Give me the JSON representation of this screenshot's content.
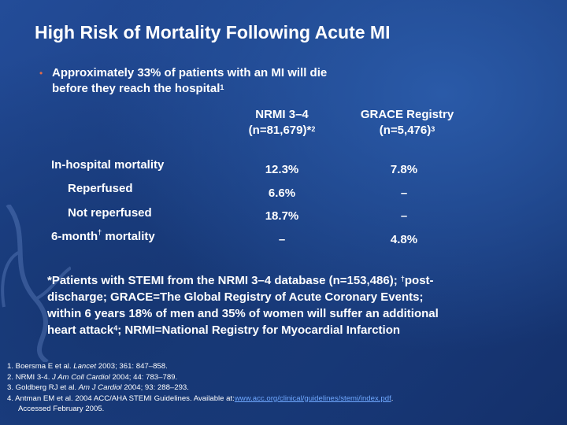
{
  "slide": {
    "title": "High Risk of Mortality Following Acute MI",
    "bullet": {
      "dot": "•",
      "line1": "Approximately 33% of patients with an MI will die",
      "line2": "before they reach the hospital",
      "sup": "1"
    }
  },
  "table": {
    "col1": {
      "line1": "NRMI 3–4",
      "line2": "(n=81,679)*",
      "sup": "2"
    },
    "col2": {
      "line1": "GRACE Registry",
      "line2": "(n=5,476)",
      "sup": "3"
    },
    "rows": [
      {
        "label_a": "In-hospital mortality",
        "nrmi": "12.3%",
        "grace": "7.8%"
      },
      {
        "label_a": "Reperfused",
        "nrmi": "6.6%",
        "grace": "–"
      },
      {
        "label_a": "Not reperfused",
        "nrmi": "18.7%",
        "grace": "–"
      },
      {
        "label_a": "6-month",
        "label_sup": "†",
        "label_b": " mortality",
        "nrmi": "–",
        "grace": "4.8%"
      }
    ]
  },
  "footnote": {
    "a": "*Patients with STEMI from the NRMI 3–4 database (n=153,486); ",
    "dagger": "†",
    "b": "post-",
    "line2": "discharge; GRACE=The Global Registry of Acute Coronary Events;",
    "line3": "within 6 years 18% of men and 35% of women will suffer an additional",
    "line4a": "heart attack",
    "line4sup": "4",
    "line4b": "; NRMI=National Registry for Myocardial Infarction"
  },
  "references": {
    "r1a": "1. Boersma E et al. ",
    "r1j": "Lancet",
    "r1b": " 2003; 361: 847–858.",
    "r2a": "2. NRMI 3-4. ",
    "r2j": "J Am Coll Cardiol",
    "r2b": " 2004; 44: 783–789.",
    "r3a": "3. Goldberg RJ et al. ",
    "r3j": "Am J Cardiol",
    "r3b": " 2004; 93: 288–293.",
    "r4a": "4. Antman EM et al. 2004 ACC/AHA STEMI Guidelines. Available at:",
    "r4link": "www.acc.org/clinical/guidelines/stemi/index.pdf",
    "r4b": ".",
    "r5": "Accessed February 2005."
  },
  "colors": {
    "background": "#1b3f86",
    "bullet": "#e26b4a",
    "link": "#6fa8ff"
  }
}
